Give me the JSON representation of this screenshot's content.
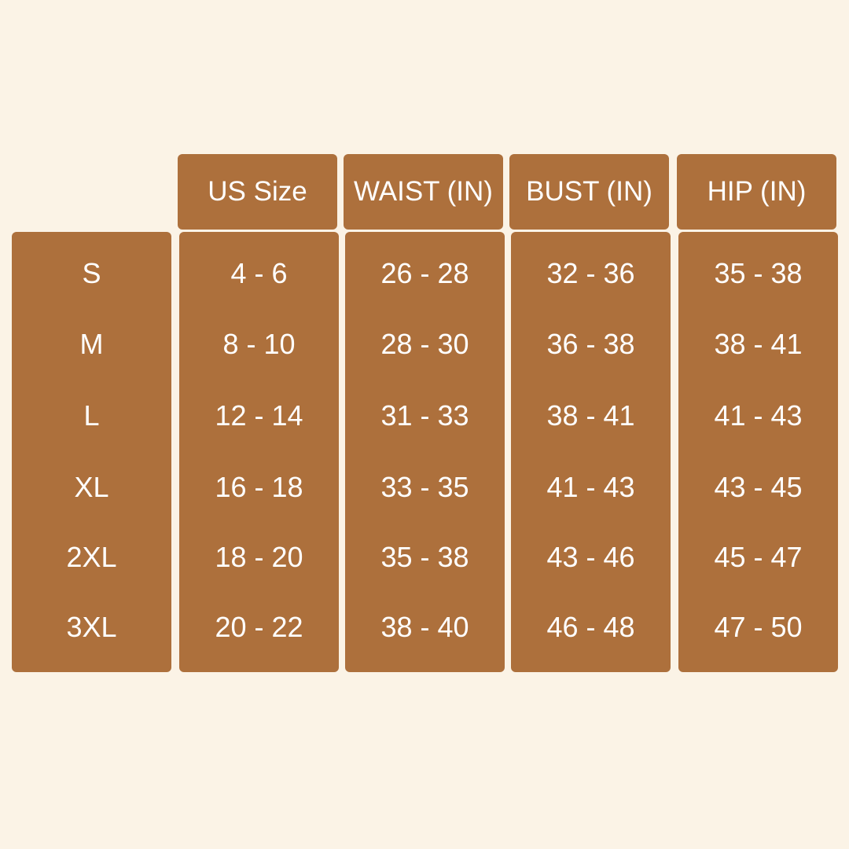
{
  "colors": {
    "background": "#FBF3E6",
    "box": "#AD703C",
    "text": "#FFFFFF"
  },
  "headers": [
    "US Size",
    "WAIST (IN)",
    "BUST (IN)",
    "HIP (IN)"
  ],
  "sizes": [
    "S",
    "M",
    "L",
    "XL",
    "2XL",
    "3XL"
  ],
  "columns": [
    [
      "4 - 6",
      "8 - 10",
      "12 - 14",
      "16 - 18",
      "18 - 20",
      "20 - 22"
    ],
    [
      "26 - 28",
      "28 - 30",
      "31 - 33",
      "33 - 35",
      "35 - 38",
      "38 - 40"
    ],
    [
      "32 - 36",
      "36 - 38",
      "38 - 41",
      "41 - 43",
      "43 - 46",
      "46 - 48"
    ],
    [
      "35 - 38",
      "38 - 41",
      "41 - 43",
      "43 - 45",
      "45 - 47",
      "47 - 50"
    ]
  ]
}
